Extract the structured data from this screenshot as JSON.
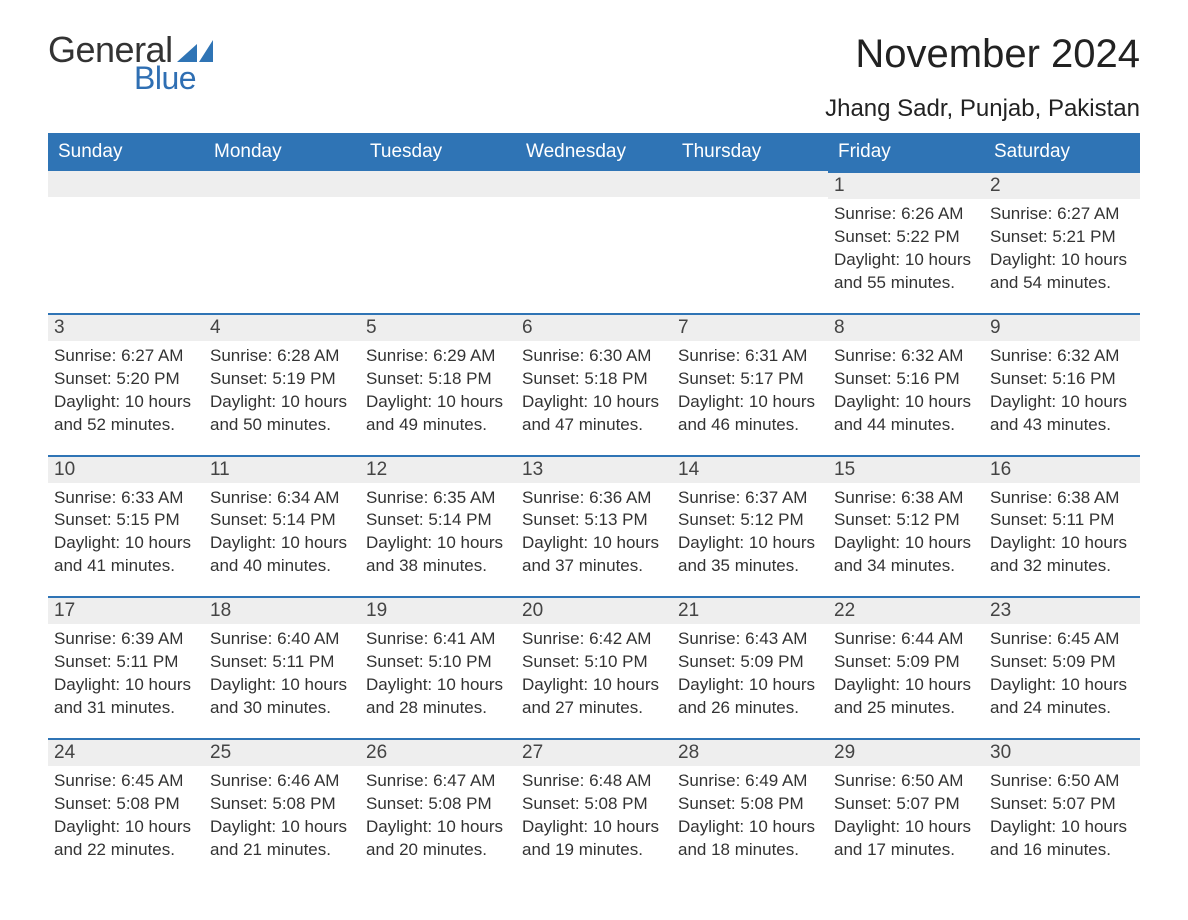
{
  "logo": {
    "text_general": "General",
    "text_blue": "Blue",
    "icon_color": "#2f74b5"
  },
  "title": "November 2024",
  "location": "Jhang Sadr, Punjab, Pakistan",
  "colors": {
    "header_bg": "#2f74b5",
    "header_text": "#ffffff",
    "strip_bg": "#eeeeee",
    "strip_border": "#2f74b5",
    "body_text": "#333333",
    "page_bg": "#ffffff"
  },
  "weekdays": [
    "Sunday",
    "Monday",
    "Tuesday",
    "Wednesday",
    "Thursday",
    "Friday",
    "Saturday"
  ],
  "labels": {
    "sunrise": "Sunrise:",
    "sunset": "Sunset:",
    "daylight": "Daylight:"
  },
  "weeks": [
    [
      null,
      null,
      null,
      null,
      null,
      {
        "day": "1",
        "sunrise": "6:26 AM",
        "sunset": "5:22 PM",
        "daylight": "10 hours and 55 minutes."
      },
      {
        "day": "2",
        "sunrise": "6:27 AM",
        "sunset": "5:21 PM",
        "daylight": "10 hours and 54 minutes."
      }
    ],
    [
      {
        "day": "3",
        "sunrise": "6:27 AM",
        "sunset": "5:20 PM",
        "daylight": "10 hours and 52 minutes."
      },
      {
        "day": "4",
        "sunrise": "6:28 AM",
        "sunset": "5:19 PM",
        "daylight": "10 hours and 50 minutes."
      },
      {
        "day": "5",
        "sunrise": "6:29 AM",
        "sunset": "5:18 PM",
        "daylight": "10 hours and 49 minutes."
      },
      {
        "day": "6",
        "sunrise": "6:30 AM",
        "sunset": "5:18 PM",
        "daylight": "10 hours and 47 minutes."
      },
      {
        "day": "7",
        "sunrise": "6:31 AM",
        "sunset": "5:17 PM",
        "daylight": "10 hours and 46 minutes."
      },
      {
        "day": "8",
        "sunrise": "6:32 AM",
        "sunset": "5:16 PM",
        "daylight": "10 hours and 44 minutes."
      },
      {
        "day": "9",
        "sunrise": "6:32 AM",
        "sunset": "5:16 PM",
        "daylight": "10 hours and 43 minutes."
      }
    ],
    [
      {
        "day": "10",
        "sunrise": "6:33 AM",
        "sunset": "5:15 PM",
        "daylight": "10 hours and 41 minutes."
      },
      {
        "day": "11",
        "sunrise": "6:34 AM",
        "sunset": "5:14 PM",
        "daylight": "10 hours and 40 minutes."
      },
      {
        "day": "12",
        "sunrise": "6:35 AM",
        "sunset": "5:14 PM",
        "daylight": "10 hours and 38 minutes."
      },
      {
        "day": "13",
        "sunrise": "6:36 AM",
        "sunset": "5:13 PM",
        "daylight": "10 hours and 37 minutes."
      },
      {
        "day": "14",
        "sunrise": "6:37 AM",
        "sunset": "5:12 PM",
        "daylight": "10 hours and 35 minutes."
      },
      {
        "day": "15",
        "sunrise": "6:38 AM",
        "sunset": "5:12 PM",
        "daylight": "10 hours and 34 minutes."
      },
      {
        "day": "16",
        "sunrise": "6:38 AM",
        "sunset": "5:11 PM",
        "daylight": "10 hours and 32 minutes."
      }
    ],
    [
      {
        "day": "17",
        "sunrise": "6:39 AM",
        "sunset": "5:11 PM",
        "daylight": "10 hours and 31 minutes."
      },
      {
        "day": "18",
        "sunrise": "6:40 AM",
        "sunset": "5:11 PM",
        "daylight": "10 hours and 30 minutes."
      },
      {
        "day": "19",
        "sunrise": "6:41 AM",
        "sunset": "5:10 PM",
        "daylight": "10 hours and 28 minutes."
      },
      {
        "day": "20",
        "sunrise": "6:42 AM",
        "sunset": "5:10 PM",
        "daylight": "10 hours and 27 minutes."
      },
      {
        "day": "21",
        "sunrise": "6:43 AM",
        "sunset": "5:09 PM",
        "daylight": "10 hours and 26 minutes."
      },
      {
        "day": "22",
        "sunrise": "6:44 AM",
        "sunset": "5:09 PM",
        "daylight": "10 hours and 25 minutes."
      },
      {
        "day": "23",
        "sunrise": "6:45 AM",
        "sunset": "5:09 PM",
        "daylight": "10 hours and 24 minutes."
      }
    ],
    [
      {
        "day": "24",
        "sunrise": "6:45 AM",
        "sunset": "5:08 PM",
        "daylight": "10 hours and 22 minutes."
      },
      {
        "day": "25",
        "sunrise": "6:46 AM",
        "sunset": "5:08 PM",
        "daylight": "10 hours and 21 minutes."
      },
      {
        "day": "26",
        "sunrise": "6:47 AM",
        "sunset": "5:08 PM",
        "daylight": "10 hours and 20 minutes."
      },
      {
        "day": "27",
        "sunrise": "6:48 AM",
        "sunset": "5:08 PM",
        "daylight": "10 hours and 19 minutes."
      },
      {
        "day": "28",
        "sunrise": "6:49 AM",
        "sunset": "5:08 PM",
        "daylight": "10 hours and 18 minutes."
      },
      {
        "day": "29",
        "sunrise": "6:50 AM",
        "sunset": "5:07 PM",
        "daylight": "10 hours and 17 minutes."
      },
      {
        "day": "30",
        "sunrise": "6:50 AM",
        "sunset": "5:07 PM",
        "daylight": "10 hours and 16 minutes."
      }
    ]
  ]
}
